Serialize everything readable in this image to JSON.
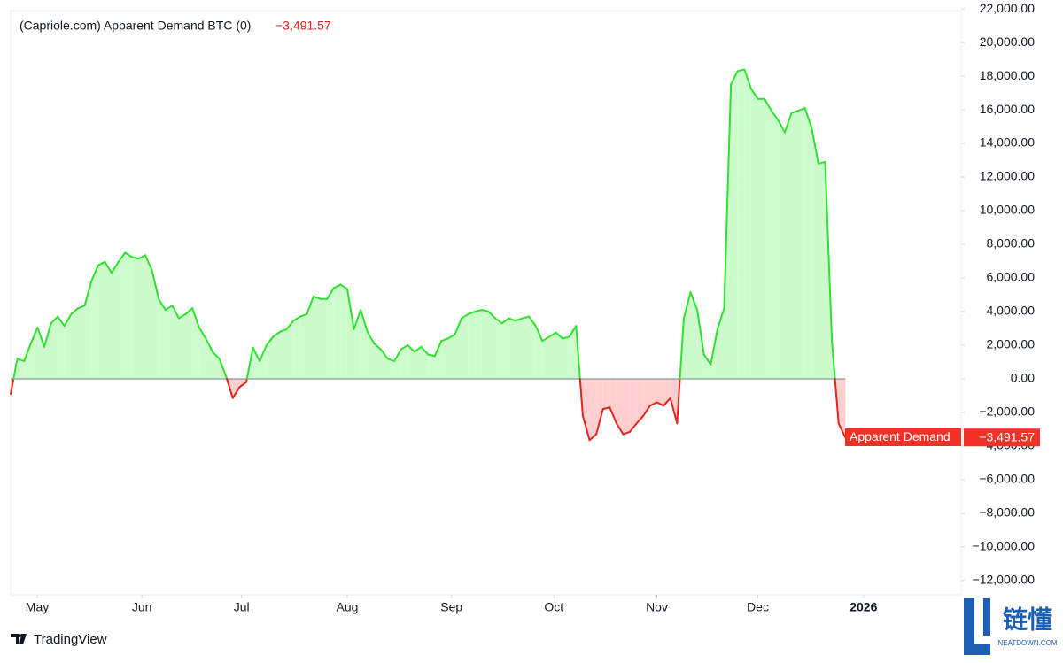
{
  "chart_data": {
    "type": "line",
    "title": "(Capriole.com) Apparent Demand BTC (0)",
    "last_value_label": "−3,491.57",
    "series_label": "Apparent Demand",
    "brand": "TradingView",
    "watermark": "链懂",
    "watermark_sub": "NEATDOWN.COM",
    "positive_color": "#2fe22f",
    "negative_color": "#e8231a",
    "positive_fill": "#ccfccc",
    "negative_fill": "#ffcfcf",
    "values": [
      -900,
      1200,
      1050,
      2100,
      3050,
      1900,
      3300,
      3700,
      3150,
      3850,
      4200,
      4350,
      5800,
      6750,
      6950,
      6300,
      6950,
      7500,
      7250,
      7150,
      7350,
      6450,
      4750,
      4100,
      4350,
      3600,
      3850,
      4200,
      3050,
      2400,
      1600,
      1200,
      150,
      -1150,
      -500,
      -200,
      1850,
      1050,
      2000,
      2500,
      2800,
      2950,
      3450,
      3700,
      3850,
      4900,
      4750,
      4750,
      5400,
      5600,
      5350,
      2950,
      4100,
      2800,
      2100,
      1750,
      1200,
      1050,
      1750,
      2000,
      1600,
      1900,
      1450,
      1350,
      2250,
      2400,
      2650,
      3600,
      3850,
      4000,
      4100,
      4000,
      3600,
      3300,
      3600,
      3450,
      3600,
      3700,
      3150,
      2250,
      2500,
      2750,
      2400,
      2500,
      3150,
      -2200,
      -3650,
      -3300,
      -1800,
      -1700,
      -2650,
      -3300,
      -3150,
      -2650,
      -2200,
      -1600,
      -1400,
      -1600,
      -1150,
      -2650,
      3600,
      5150,
      4100,
      1450,
      850,
      2950,
      4200,
      17500,
      18300,
      18400,
      17250,
      16650,
      16650,
      15950,
      15400,
      14650,
      15800,
      15950,
      16100,
      14900,
      12800,
      12900,
      2250,
      -2650,
      -3491.57
    ],
    "xlim": [
      0,
      141.2
    ],
    "xticks": [
      {
        "value": 3.95,
        "label": "May"
      },
      {
        "value": 19.5,
        "label": "Jun"
      },
      {
        "value": 34.3,
        "label": "Jul"
      },
      {
        "value": 50,
        "label": "Aug"
      },
      {
        "value": 65.5,
        "label": "Sep"
      },
      {
        "value": 80.7,
        "label": "Oct"
      },
      {
        "value": 96,
        "label": "Nov"
      },
      {
        "value": 111,
        "label": "Dec"
      },
      {
        "value": 126.7,
        "label": "2026"
      }
    ],
    "ylim": [
      -12850,
      21900
    ],
    "yticks": [
      {
        "value": 22000,
        "label": "22,000.00"
      },
      {
        "value": 20000,
        "label": "20,000.00"
      },
      {
        "value": 18000,
        "label": "18,000.00"
      },
      {
        "value": 16000,
        "label": "16,000.00"
      },
      {
        "value": 14000,
        "label": "14,000.00"
      },
      {
        "value": 12000,
        "label": "12,000.00"
      },
      {
        "value": 10000,
        "label": "10,000.00"
      },
      {
        "value": 8000,
        "label": "8,000.00"
      },
      {
        "value": 6000,
        "label": "6,000.00"
      },
      {
        "value": 4000,
        "label": "4,000.00"
      },
      {
        "value": 2000,
        "label": "2,000.00"
      },
      {
        "value": 0,
        "label": "0.00"
      },
      {
        "value": -2000,
        "label": "−2,000.00"
      },
      {
        "value": -4000,
        "label": "−4,000.00"
      },
      {
        "value": -6000,
        "label": "−6,000.00"
      },
      {
        "value": -8000,
        "label": "−8,000.00"
      },
      {
        "value": -10000,
        "label": "−10,000.00"
      },
      {
        "value": -12000,
        "label": "−12,000.00"
      }
    ]
  }
}
